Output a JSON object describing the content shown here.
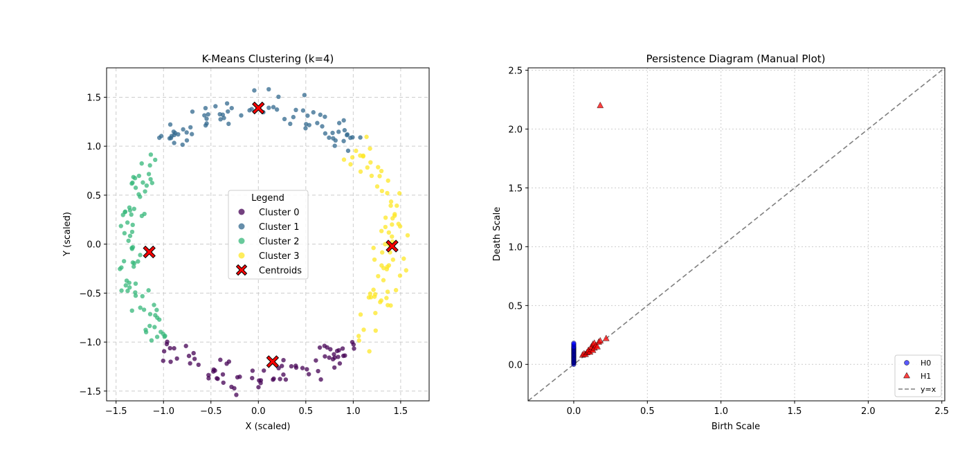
{
  "colors": {
    "cluster_0": "#440154",
    "cluster_1": "#31688e",
    "cluster_2": "#35b779",
    "cluster_3": "#fde725",
    "centroid": "#ff0000",
    "h0": "#0000ff",
    "h1": "#ff0000",
    "diagonal": "#7f7f7f",
    "grid": "#cccccc"
  },
  "chart_data": [
    {
      "type": "scatter",
      "title": "K-Means Clustering (k=4)",
      "xlabel": "X (scaled)",
      "ylabel": "Y (scaled)",
      "xlim": [
        -1.6,
        1.8
      ],
      "ylim": [
        -1.6,
        1.8
      ],
      "xticks": [
        -1.5,
        -1.0,
        -0.5,
        0.0,
        0.5,
        1.0,
        1.5
      ],
      "yticks": [
        -1.5,
        -1.0,
        -0.5,
        0.0,
        0.5,
        1.0,
        1.5
      ],
      "tick_labels": [
        "−1.5",
        "−1.0",
        "−0.5",
        "0.0",
        "0.5",
        "1.0",
        "1.5"
      ],
      "grid": true,
      "grid_style": "dashed",
      "legend": {
        "title": "Legend",
        "placement": "center",
        "entries": [
          "Cluster 0",
          "Cluster 1",
          "Cluster 2",
          "Cluster 3",
          "Centroids"
        ]
      },
      "ring": {
        "center": [
          0.0,
          0.0
        ],
        "radius": 1.4,
        "spread": 0.12,
        "points_per_cluster": 75
      },
      "clusters": [
        {
          "name": "Cluster 0",
          "angle_range_deg": [
            225,
            315
          ]
        },
        {
          "name": "Cluster 1",
          "angle_range_deg": [
            45,
            135
          ]
        },
        {
          "name": "Cluster 2",
          "angle_range_deg": [
            135,
            225
          ]
        },
        {
          "name": "Cluster 3",
          "angle_range_deg": [
            -45,
            45
          ]
        }
      ],
      "centroids": [
        {
          "x": 0.15,
          "y": -1.2
        },
        {
          "x": 0.0,
          "y": 1.39
        },
        {
          "x": -1.15,
          "y": -0.08
        },
        {
          "x": 1.41,
          "y": -0.02
        }
      ]
    },
    {
      "type": "scatter",
      "title": "Persistence Diagram (Manual Plot)",
      "xlabel": "Birth Scale",
      "ylabel": "Death Scale",
      "xlim": [
        -0.31,
        2.52
      ],
      "ylim": [
        -0.31,
        2.52
      ],
      "xticks": [
        0.0,
        0.5,
        1.0,
        1.5,
        2.0,
        2.5
      ],
      "yticks": [
        0.0,
        0.5,
        1.0,
        1.5,
        2.0,
        2.5
      ],
      "tick_labels": [
        "0.0",
        "0.5",
        "1.0",
        "1.5",
        "2.0",
        "2.5"
      ],
      "grid": true,
      "grid_style": "dotted",
      "legend": {
        "placement": "lower right",
        "entries": [
          "H0",
          "H1",
          "y=x"
        ]
      },
      "series": [
        {
          "name": "H0",
          "marker": "circle",
          "points": [
            [
              0,
              0.0
            ],
            [
              0,
              0.01
            ],
            [
              0,
              0.015
            ],
            [
              0,
              0.02
            ],
            [
              0,
              0.025
            ],
            [
              0,
              0.03
            ],
            [
              0,
              0.035
            ],
            [
              0,
              0.04
            ],
            [
              0,
              0.045
            ],
            [
              0,
              0.05
            ],
            [
              0,
              0.055
            ],
            [
              0,
              0.06
            ],
            [
              0,
              0.065
            ],
            [
              0,
              0.07
            ],
            [
              0,
              0.075
            ],
            [
              0,
              0.08
            ],
            [
              0,
              0.085
            ],
            [
              0,
              0.09
            ],
            [
              0,
              0.095
            ],
            [
              0,
              0.1
            ],
            [
              0,
              0.105
            ],
            [
              0,
              0.11
            ],
            [
              0,
              0.115
            ],
            [
              0,
              0.12
            ],
            [
              0,
              0.125
            ],
            [
              0,
              0.13
            ],
            [
              0,
              0.135
            ],
            [
              0,
              0.14
            ],
            [
              0,
              0.145
            ],
            [
              0,
              0.15
            ],
            [
              0,
              0.16
            ],
            [
              0,
              0.17
            ],
            [
              0,
              0.18
            ]
          ]
        },
        {
          "name": "H1",
          "marker": "triangle",
          "points": [
            [
              0.06,
              0.08
            ],
            [
              0.07,
              0.09
            ],
            [
              0.08,
              0.085
            ],
            [
              0.09,
              0.1
            ],
            [
              0.1,
              0.11
            ],
            [
              0.1,
              0.12
            ],
            [
              0.11,
              0.105
            ],
            [
              0.12,
              0.13
            ],
            [
              0.12,
              0.15
            ],
            [
              0.13,
              0.12
            ],
            [
              0.13,
              0.17
            ],
            [
              0.14,
              0.14
            ],
            [
              0.14,
              0.18
            ],
            [
              0.15,
              0.16
            ],
            [
              0.16,
              0.15
            ],
            [
              0.17,
              0.19
            ],
            [
              0.18,
              0.2
            ],
            [
              0.22,
              0.22
            ],
            [
              0.18,
              2.2
            ]
          ]
        },
        {
          "name": "y=x",
          "style": "dashed"
        }
      ]
    }
  ]
}
